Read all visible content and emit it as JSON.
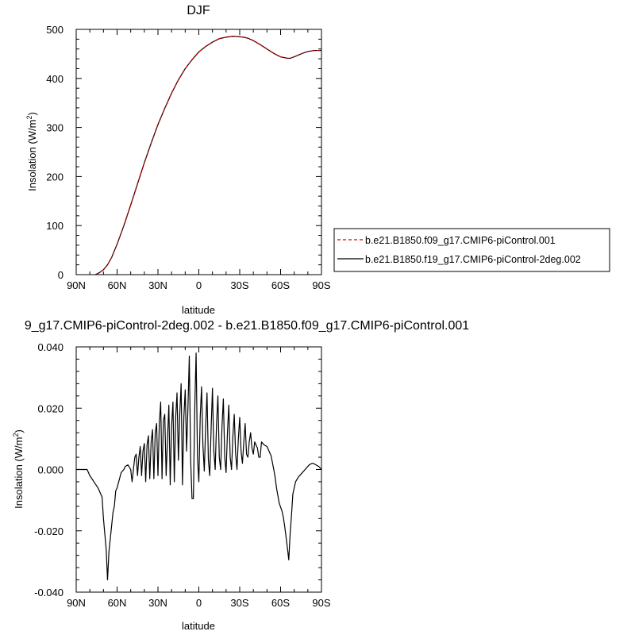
{
  "chart_data": [
    {
      "type": "line",
      "title": "DJF",
      "xlabel": "latitude",
      "ylabel_main": "Insolation (W/m",
      "ylabel_sup": "2",
      "ylabel_close": ")",
      "xlim": [
        90,
        -90
      ],
      "ylim": [
        0,
        500
      ],
      "xticks": [
        {
          "value": 90,
          "label": "90N"
        },
        {
          "value": 60,
          "label": "60N"
        },
        {
          "value": 30,
          "label": "30N"
        },
        {
          "value": 0,
          "label": "0"
        },
        {
          "value": -30,
          "label": "30S"
        },
        {
          "value": -60,
          "label": "60S"
        },
        {
          "value": -90,
          "label": "90S"
        }
      ],
      "yticks": [
        {
          "value": 0,
          "label": "0"
        },
        {
          "value": 100,
          "label": "100"
        },
        {
          "value": 200,
          "label": "200"
        },
        {
          "value": 300,
          "label": "300"
        },
        {
          "value": 400,
          "label": "400"
        },
        {
          "value": 500,
          "label": "500"
        }
      ],
      "legend_position": "right",
      "series": [
        {
          "name": "b.e21.B1850.f09_g17.CMIP6-piControl.001",
          "color": "#cc0000",
          "dash": "dashed",
          "x": [
            76,
            73,
            70,
            67,
            64,
            60,
            55,
            50,
            45,
            40,
            35,
            30,
            25,
            20,
            15,
            10,
            5,
            0,
            -5,
            -10,
            -15,
            -20,
            -25,
            -30,
            -33,
            -36,
            -40,
            -45,
            -50,
            -55,
            -60,
            -65,
            -67,
            -70,
            -75,
            -80,
            -85,
            -90
          ],
          "y": [
            0,
            4,
            10,
            20,
            35,
            62,
            100,
            142,
            185,
            228,
            268,
            306,
            339,
            370,
            397,
            420,
            438,
            454,
            465,
            474,
            481,
            484,
            486,
            485,
            484,
            482,
            477,
            469,
            460,
            451,
            444,
            441,
            441,
            444,
            450,
            455,
            457,
            457
          ]
        },
        {
          "name": "b.e21.B1850.f19_g17.CMIP6-piControl-2deg.002",
          "color": "#000000",
          "dash": "solid",
          "x": [
            76,
            73,
            70,
            67,
            64,
            60,
            55,
            50,
            45,
            40,
            35,
            30,
            25,
            20,
            15,
            10,
            5,
            0,
            -5,
            -10,
            -15,
            -20,
            -25,
            -30,
            -33,
            -36,
            -40,
            -45,
            -50,
            -55,
            -60,
            -65,
            -67,
            -70,
            -75,
            -80,
            -85,
            -90
          ],
          "y": [
            0,
            4,
            10,
            20,
            35,
            62,
            100,
            142,
            185,
            228,
            268,
            306,
            339,
            370,
            397,
            420,
            438,
            454,
            465,
            474,
            481,
            484,
            486,
            485,
            484,
            482,
            477,
            469,
            460,
            451,
            444,
            441,
            441,
            444,
            450,
            455,
            457,
            457
          ]
        }
      ]
    },
    {
      "type": "line",
      "title": "9_g17.CMIP6-piControl-2deg.002 - b.e21.B1850.f09_g17.CMIP6-piControl.001",
      "xlabel": "latitude",
      "ylabel_main": "Insolation (W/m",
      "ylabel_sup": "2",
      "ylabel_close": ")",
      "xlim": [
        90,
        -90
      ],
      "ylim": [
        -0.04,
        0.04
      ],
      "xticks": [
        {
          "value": 90,
          "label": "90N"
        },
        {
          "value": 60,
          "label": "60N"
        },
        {
          "value": 30,
          "label": "30N"
        },
        {
          "value": 0,
          "label": "0"
        },
        {
          "value": -30,
          "label": "30S"
        },
        {
          "value": -60,
          "label": "60S"
        },
        {
          "value": -90,
          "label": "90S"
        }
      ],
      "yticks": [
        {
          "value": -0.04,
          "label": "-0.040"
        },
        {
          "value": -0.02,
          "label": "-0.020"
        },
        {
          "value": 0,
          "label": "0.000"
        },
        {
          "value": 0.02,
          "label": "0.020"
        },
        {
          "value": 0.04,
          "label": "0.040"
        }
      ],
      "series": [
        {
          "color": "#000000",
          "dash": "solid",
          "x": [
            90,
            82,
            80,
            77,
            74,
            71,
            70,
            68,
            67,
            66,
            63,
            62,
            61,
            60,
            57,
            55,
            54,
            52,
            50,
            49,
            47,
            46,
            45,
            44,
            43,
            42,
            41,
            40,
            39,
            38,
            37,
            36,
            35,
            34,
            33,
            32,
            31,
            30,
            29,
            28,
            27,
            26,
            25,
            24,
            23,
            22,
            21,
            20,
            19,
            18,
            17,
            16,
            15,
            14,
            13,
            12,
            11,
            10,
            9,
            8,
            7,
            6,
            5,
            4,
            3,
            2,
            1,
            0,
            -1,
            -2,
            -3,
            -4,
            -5,
            -6,
            -7,
            -8,
            -9,
            -10,
            -11,
            -12,
            -13,
            -14,
            -15,
            -16,
            -17,
            -18,
            -19,
            -20,
            -21,
            -22,
            -23,
            -24,
            -25,
            -26,
            -27,
            -28,
            -29,
            -30,
            -31,
            -32,
            -33,
            -34,
            -35,
            -36,
            -37,
            -38,
            -39,
            -40,
            -41,
            -42,
            -43,
            -44,
            -45,
            -46,
            -47,
            -48,
            -50,
            -53,
            -55,
            -56,
            -57,
            -59,
            -61,
            -62,
            -63,
            -65,
            -66,
            -67,
            -68,
            -69,
            -70,
            -71,
            -73,
            -75,
            -78,
            -81,
            -83,
            -84,
            -86,
            -88,
            -90
          ],
          "y": [
            0.0,
            0.0,
            -0.002,
            -0.004,
            -0.006,
            -0.009,
            -0.016,
            -0.026,
            -0.036,
            -0.027,
            -0.014,
            -0.012,
            -0.007,
            -0.006,
            -0.001,
            0.0,
            0.001,
            0.0015,
            0.0,
            -0.004,
            0.004,
            0.005,
            -0.002,
            0.004,
            0.0075,
            -0.002,
            0.006,
            0.0085,
            -0.004,
            0.008,
            0.011,
            -0.003,
            0.009,
            0.013,
            -0.003,
            0.012,
            0.015,
            -0.002,
            0.015,
            0.022,
            -0.003,
            0.016,
            0.018,
            -0.002,
            0.01,
            0.021,
            -0.005,
            0.014,
            0.022,
            -0.004,
            0.017,
            0.025,
            0.003,
            0.018,
            0.028,
            -0.005,
            0.017,
            0.026,
            0.006,
            0.02,
            0.037,
            0.003,
            -0.0095,
            -0.0095,
            0.02,
            0.038,
            0.004,
            -0.004,
            0.017,
            0.027,
            0.008,
            -0.0005,
            0.014,
            0.025,
            0.003,
            -0.002,
            0.013,
            0.0265,
            0.006,
            0.0,
            0.015,
            0.024,
            0.004,
            0.0,
            0.014,
            0.023,
            0.004,
            -0.001,
            0.012,
            0.021,
            0.004,
            0.0,
            0.011,
            0.018,
            0.005,
            0.0,
            0.01,
            0.017,
            0.006,
            0.002,
            0.009,
            0.015,
            0.005,
            0.004,
            0.009,
            0.012,
            0.007,
            0.005,
            0.009,
            0.008,
            0.007,
            0.004,
            0.004,
            0.009,
            0.0085,
            0.008,
            0.0075,
            0.0045,
            0.0,
            -0.0025,
            -0.006,
            -0.011,
            -0.0135,
            -0.0155,
            -0.0185,
            -0.0255,
            -0.0295,
            -0.021,
            -0.015,
            -0.008,
            -0.006,
            -0.004,
            -0.0025,
            -0.0015,
            0.0,
            0.0015,
            0.002,
            0.002,
            0.0015,
            0.001,
            0.0
          ]
        }
      ]
    }
  ]
}
